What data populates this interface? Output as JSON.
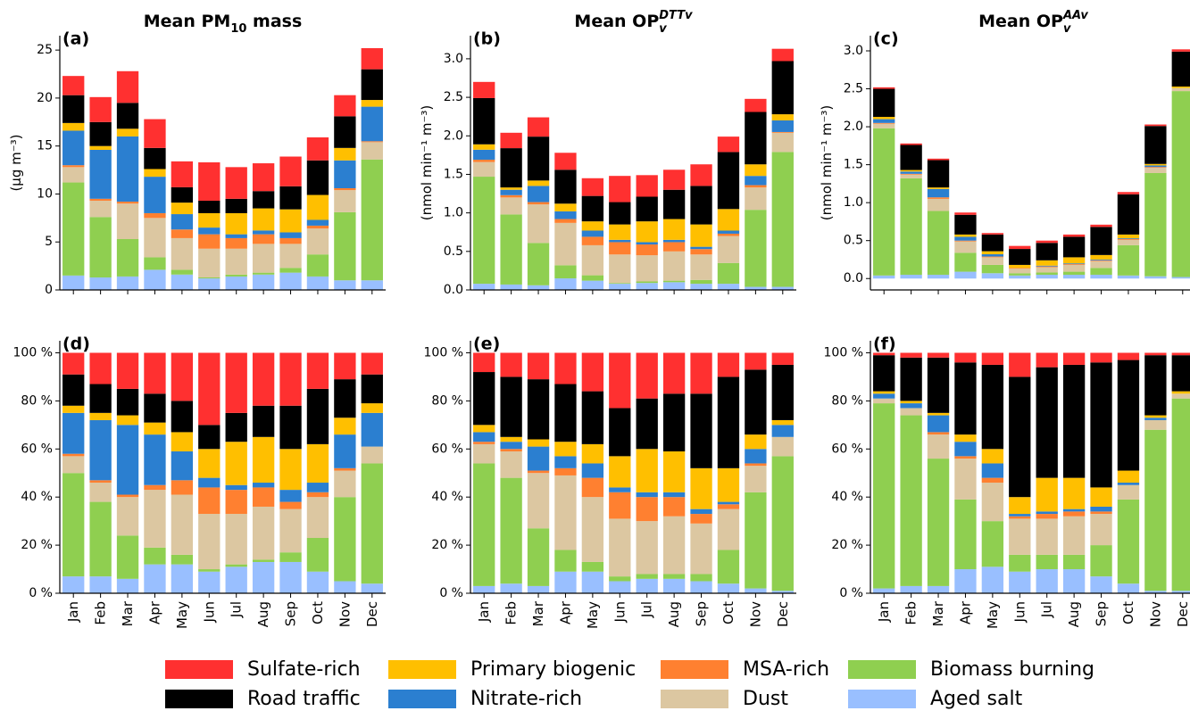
{
  "chart_data": [
    {
      "type": "bar",
      "stacked": true,
      "panel_label": "(a)",
      "title": [
        {
          "text": "Mean PM"
        },
        {
          "text": "10",
          "sub": true
        },
        {
          "text": " mass"
        }
      ],
      "ylabel": "(μg m⁻³)",
      "ylim": [
        0,
        26.5
      ],
      "yticks": [
        0,
        5,
        10,
        15,
        20,
        25
      ],
      "series": [
        {
          "name": "Aged salt",
          "color": "#99bfff",
          "values": [
            1.5,
            1.3,
            1.4,
            2.1,
            1.6,
            1.2,
            1.4,
            1.6,
            1.8,
            1.4,
            1.0,
            1.0
          ]
        },
        {
          "name": "Biomass burning",
          "color": "#8fcf50",
          "values": [
            9.7,
            6.3,
            3.9,
            1.3,
            0.5,
            0.1,
            0.2,
            0.2,
            0.5,
            2.3,
            7.1,
            12.6
          ]
        },
        {
          "name": "Dust",
          "color": "#dcc7a1",
          "values": [
            1.6,
            1.7,
            3.7,
            4.1,
            3.3,
            3.0,
            2.7,
            3.0,
            2.5,
            2.7,
            2.3,
            1.8
          ]
        },
        {
          "name": "MSA-rich",
          "color": "#ff8030",
          "values": [
            0.2,
            0.2,
            0.2,
            0.5,
            0.9,
            1.5,
            1.1,
            1.0,
            0.6,
            0.3,
            0.2,
            0.1
          ]
        },
        {
          "name": "Nitrate-rich",
          "color": "#2b7fd0",
          "values": [
            3.6,
            5.1,
            6.8,
            3.8,
            1.6,
            0.7,
            0.4,
            0.4,
            0.6,
            0.6,
            2.9,
            3.6
          ]
        },
        {
          "name": "Primary biogenic",
          "color": "#ffbf00",
          "values": [
            0.8,
            0.4,
            0.8,
            0.8,
            1.2,
            1.5,
            2.2,
            2.3,
            2.4,
            2.6,
            1.3,
            0.7
          ]
        },
        {
          "name": "Road traffic",
          "color": "#000000",
          "values": [
            2.9,
            2.5,
            2.7,
            2.2,
            1.6,
            1.3,
            1.5,
            1.8,
            2.4,
            3.6,
            3.3,
            3.2
          ]
        },
        {
          "name": "Sulfate-rich",
          "color": "#ff3030",
          "values": [
            2.0,
            2.6,
            3.3,
            3.0,
            2.7,
            4.0,
            3.3,
            2.9,
            3.1,
            2.4,
            2.2,
            2.2
          ]
        }
      ]
    },
    {
      "type": "bar",
      "stacked": true,
      "panel_label": "(b)",
      "title": [
        {
          "text": "Mean OP"
        },
        {
          "text": "v",
          "sub": true,
          "italic": true
        },
        {
          "text": "DTTv",
          "sup": true,
          "italic": true
        }
      ],
      "ylabel": "(nmol min⁻¹ m⁻³)",
      "ylim": [
        0,
        3.3
      ],
      "yticks": [
        {
          "value": 0,
          "label": "0.0"
        },
        0.5,
        {
          "value": 1,
          "label": "1.0"
        },
        1.5,
        {
          "value": 2,
          "label": "2.0"
        },
        2.5,
        {
          "value": 3,
          "label": "3.0"
        }
      ],
      "series": [
        {
          "name": "Aged salt",
          "color": "#99bfff",
          "values": [
            0.08,
            0.07,
            0.06,
            0.15,
            0.12,
            0.08,
            0.09,
            0.1,
            0.08,
            0.08,
            0.04,
            0.04
          ]
        },
        {
          "name": "Biomass burning",
          "color": "#8fcf50",
          "values": [
            1.39,
            0.91,
            0.55,
            0.17,
            0.07,
            0.01,
            0.02,
            0.02,
            0.05,
            0.27,
            1.0,
            1.75
          ]
        },
        {
          "name": "Dust",
          "color": "#dcc7a1",
          "values": [
            0.19,
            0.22,
            0.5,
            0.55,
            0.39,
            0.37,
            0.34,
            0.38,
            0.33,
            0.35,
            0.29,
            0.25
          ]
        },
        {
          "name": "MSA-rich",
          "color": "#ff8030",
          "values": [
            0.03,
            0.03,
            0.03,
            0.05,
            0.11,
            0.16,
            0.14,
            0.12,
            0.07,
            0.03,
            0.03,
            0.01
          ]
        },
        {
          "name": "Nitrate-rich",
          "color": "#2b7fd0",
          "values": [
            0.13,
            0.07,
            0.21,
            0.1,
            0.08,
            0.03,
            0.03,
            0.03,
            0.03,
            0.04,
            0.12,
            0.15
          ]
        },
        {
          "name": "Primary biogenic",
          "color": "#ffbf00",
          "values": [
            0.07,
            0.03,
            0.07,
            0.1,
            0.12,
            0.2,
            0.27,
            0.27,
            0.29,
            0.28,
            0.15,
            0.08
          ]
        },
        {
          "name": "Road traffic",
          "color": "#000000",
          "values": [
            0.6,
            0.51,
            0.57,
            0.44,
            0.33,
            0.29,
            0.32,
            0.38,
            0.5,
            0.74,
            0.68,
            0.69
          ]
        },
        {
          "name": "Sulfate-rich",
          "color": "#ff3030",
          "values": [
            0.21,
            0.2,
            0.25,
            0.22,
            0.23,
            0.34,
            0.28,
            0.26,
            0.28,
            0.2,
            0.17,
            0.16
          ]
        }
      ]
    },
    {
      "type": "bar",
      "stacked": true,
      "panel_label": "(c)",
      "title": [
        {
          "text": "Mean OP"
        },
        {
          "text": "v",
          "sub": true,
          "italic": true
        },
        {
          "text": "AAv",
          "sup": true,
          "italic": true
        }
      ],
      "ylabel": "(nmol min⁻¹ m⁻³)",
      "ylim": [
        -0.15,
        3.2
      ],
      "yticks": [
        {
          "value": 0,
          "label": "0.0"
        },
        0.5,
        {
          "value": 1,
          "label": "1.0"
        },
        1.5,
        {
          "value": 2,
          "label": "2.0"
        },
        2.5,
        {
          "value": 3,
          "label": "3.0"
        }
      ],
      "series": [
        {
          "name": "Aged salt",
          "color": "#99bfff",
          "values": [
            0.04,
            0.05,
            0.05,
            0.09,
            0.07,
            0.04,
            0.05,
            0.05,
            0.05,
            0.04,
            0.03,
            0.02
          ]
        },
        {
          "name": "Biomass burning",
          "color": "#8fcf50",
          "values": [
            1.94,
            1.27,
            0.84,
            0.25,
            0.11,
            0.03,
            0.03,
            0.04,
            0.09,
            0.4,
            1.36,
            2.45
          ]
        },
        {
          "name": "Dust",
          "color": "#dcc7a1",
          "values": [
            0.06,
            0.05,
            0.16,
            0.15,
            0.1,
            0.06,
            0.07,
            0.09,
            0.09,
            0.07,
            0.07,
            0.04
          ]
        },
        {
          "name": "MSA-rich",
          "color": "#ff8030",
          "values": [
            0.01,
            0.01,
            0.02,
            0.01,
            0.01,
            0.01,
            0.01,
            0.01,
            0.01,
            0.01,
            0.01,
            0.0
          ]
        },
        {
          "name": "Nitrate-rich",
          "color": "#2b7fd0",
          "values": [
            0.05,
            0.03,
            0.11,
            0.05,
            0.03,
            0.0,
            0.01,
            0.01,
            0.01,
            0.01,
            0.02,
            0.0
          ]
        },
        {
          "name": "Primary biogenic",
          "color": "#ffbf00",
          "values": [
            0.03,
            0.02,
            0.02,
            0.03,
            0.04,
            0.04,
            0.07,
            0.08,
            0.06,
            0.05,
            0.02,
            0.02
          ]
        },
        {
          "name": "Road traffic",
          "color": "#000000",
          "values": [
            0.37,
            0.33,
            0.36,
            0.26,
            0.22,
            0.21,
            0.23,
            0.27,
            0.37,
            0.53,
            0.5,
            0.46
          ]
        },
        {
          "name": "Sulfate-rich",
          "color": "#ff3030",
          "values": [
            0.02,
            0.02,
            0.02,
            0.03,
            0.02,
            0.04,
            0.03,
            0.03,
            0.03,
            0.03,
            0.02,
            0.03
          ]
        }
      ]
    },
    {
      "type": "bar",
      "stacked": true,
      "panel_label": "(d)",
      "categories": [
        "Jan",
        "Feb",
        "Mar",
        "Apr",
        "May",
        "Jun",
        "Jul",
        "Aug",
        "Sep",
        "Oct",
        "Nov",
        "Dec"
      ],
      "ylim": [
        0,
        105
      ],
      "yticks": [
        {
          "value": 0,
          "label": "0 %"
        },
        {
          "value": 20,
          "label": "20 %"
        },
        {
          "value": 40,
          "label": "40 %"
        },
        {
          "value": 60,
          "label": "60 %"
        },
        {
          "value": 80,
          "label": "80 %"
        },
        {
          "value": 100,
          "label": "100 %"
        }
      ],
      "series": [
        {
          "name": "Aged salt",
          "color": "#99bfff",
          "values": [
            7,
            7,
            6,
            12,
            12,
            9,
            11,
            13,
            13,
            9,
            5,
            4
          ]
        },
        {
          "name": "Biomass burning",
          "color": "#8fcf50",
          "values": [
            43,
            31,
            18,
            7,
            4,
            1,
            1,
            1,
            4,
            14,
            35,
            50
          ]
        },
        {
          "name": "Dust",
          "color": "#dcc7a1",
          "values": [
            7,
            8,
            16,
            24,
            25,
            23,
            21,
            22,
            18,
            17,
            11,
            7
          ]
        },
        {
          "name": "MSA-rich",
          "color": "#ff8030",
          "values": [
            1,
            1,
            1,
            2,
            6,
            11,
            10,
            8,
            3,
            2,
            1,
            0
          ]
        },
        {
          "name": "Nitrate-rich",
          "color": "#2b7fd0",
          "values": [
            17,
            25,
            29,
            21,
            12,
            4,
            2,
            2,
            5,
            4,
            14,
            14
          ]
        },
        {
          "name": "Primary biogenic",
          "color": "#ffbf00",
          "values": [
            3,
            3,
            4,
            5,
            8,
            12,
            18,
            19,
            17,
            16,
            7,
            4
          ]
        },
        {
          "name": "Road traffic",
          "color": "#000000",
          "values": [
            13,
            12,
            11,
            12,
            13,
            10,
            12,
            13,
            18,
            23,
            16,
            12
          ]
        },
        {
          "name": "Sulfate-rich",
          "color": "#ff3030",
          "values": [
            9,
            13,
            15,
            17,
            20,
            30,
            25,
            22,
            22,
            15,
            11,
            9
          ]
        }
      ]
    },
    {
      "type": "bar",
      "stacked": true,
      "panel_label": "(e)",
      "categories": [
        "Jan",
        "Feb",
        "Mar",
        "Apr",
        "May",
        "Jun",
        "Jul",
        "Aug",
        "Sep",
        "Oct",
        "Nov",
        "Dec"
      ],
      "ylim": [
        0,
        105
      ],
      "yticks": [
        {
          "value": 0,
          "label": "0 %"
        },
        {
          "value": 20,
          "label": "20 %"
        },
        {
          "value": 40,
          "label": "40 %"
        },
        {
          "value": 60,
          "label": "60 %"
        },
        {
          "value": 80,
          "label": "80 %"
        },
        {
          "value": 100,
          "label": "100 %"
        }
      ],
      "series": [
        {
          "name": "Aged salt",
          "color": "#99bfff",
          "values": [
            3,
            4,
            3,
            9,
            9,
            5,
            6,
            6,
            5,
            4,
            2,
            1
          ]
        },
        {
          "name": "Biomass burning",
          "color": "#8fcf50",
          "values": [
            51,
            44,
            24,
            9,
            4,
            2,
            2,
            2,
            3,
            14,
            40,
            56
          ]
        },
        {
          "name": "Dust",
          "color": "#dcc7a1",
          "values": [
            8,
            11,
            23,
            31,
            27,
            24,
            22,
            24,
            21,
            17,
            11,
            8
          ]
        },
        {
          "name": "MSA-rich",
          "color": "#ff8030",
          "values": [
            1,
            1,
            1,
            3,
            8,
            11,
            10,
            8,
            4,
            2,
            1,
            0
          ]
        },
        {
          "name": "Nitrate-rich",
          "color": "#2b7fd0",
          "values": [
            4,
            3,
            10,
            5,
            6,
            2,
            2,
            2,
            2,
            1,
            6,
            5
          ]
        },
        {
          "name": "Primary biogenic",
          "color": "#ffbf00",
          "values": [
            3,
            2,
            3,
            6,
            8,
            13,
            18,
            17,
            17,
            14,
            6,
            2
          ]
        },
        {
          "name": "Road traffic",
          "color": "#000000",
          "values": [
            22,
            25,
            25,
            24,
            22,
            20,
            21,
            24,
            31,
            38,
            27,
            23
          ]
        },
        {
          "name": "Sulfate-rich",
          "color": "#ff3030",
          "values": [
            8,
            10,
            11,
            13,
            16,
            23,
            19,
            17,
            17,
            10,
            7,
            5
          ]
        }
      ]
    },
    {
      "type": "bar",
      "stacked": true,
      "panel_label": "(f)",
      "categories": [
        "Jan",
        "Feb",
        "Mar",
        "Apr",
        "May",
        "Jun",
        "Jul",
        "Aug",
        "Sep",
        "Oct",
        "Nov",
        "Dec"
      ],
      "ylim": [
        0,
        105
      ],
      "yticks": [
        {
          "value": 0,
          "label": "0 %"
        },
        {
          "value": 20,
          "label": "20 %"
        },
        {
          "value": 40,
          "label": "40 %"
        },
        {
          "value": 60,
          "label": "60 %"
        },
        {
          "value": 80,
          "label": "80 %"
        },
        {
          "value": 100,
          "label": "100 %"
        }
      ],
      "series": [
        {
          "name": "Aged salt",
          "color": "#99bfff",
          "values": [
            2,
            3,
            3,
            10,
            11,
            9,
            10,
            10,
            7,
            4,
            1,
            1
          ]
        },
        {
          "name": "Biomass burning",
          "color": "#8fcf50",
          "values": [
            77,
            71,
            53,
            29,
            19,
            7,
            6,
            6,
            13,
            35,
            67,
            80
          ]
        },
        {
          "name": "Dust",
          "color": "#dcc7a1",
          "values": [
            2,
            3,
            10,
            17,
            16,
            15,
            15,
            16,
            13,
            6,
            4,
            2
          ]
        },
        {
          "name": "MSA-rich",
          "color": "#ff8030",
          "values": [
            0,
            0,
            1,
            1,
            2,
            1,
            2,
            2,
            1,
            0,
            0,
            0
          ]
        },
        {
          "name": "Nitrate-rich",
          "color": "#2b7fd0",
          "values": [
            2,
            2,
            7,
            6,
            6,
            1,
            1,
            1,
            2,
            1,
            1,
            0
          ]
        },
        {
          "name": "Primary biogenic",
          "color": "#ffbf00",
          "values": [
            1,
            1,
            1,
            3,
            6,
            7,
            14,
            13,
            8,
            5,
            1,
            1
          ]
        },
        {
          "name": "Road traffic",
          "color": "#000000",
          "values": [
            15,
            18,
            23,
            30,
            35,
            50,
            46,
            47,
            52,
            46,
            25,
            15
          ]
        },
        {
          "name": "Sulfate-rich",
          "color": "#ff3030",
          "values": [
            1,
            2,
            2,
            4,
            5,
            10,
            6,
            5,
            4,
            3,
            1,
            1
          ]
        }
      ]
    }
  ]
}
